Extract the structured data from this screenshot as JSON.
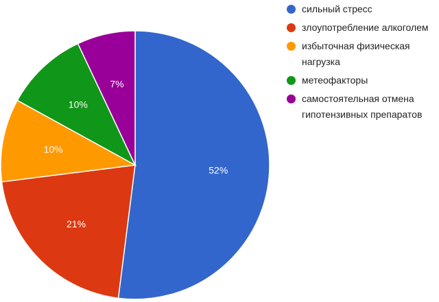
{
  "chart_data": {
    "type": "pie",
    "title": "",
    "legend_position": "right",
    "start_angle_deg": 0,
    "direction": "clockwise",
    "slices": [
      {
        "name": "сильный стресс",
        "value": 52,
        "label": "52%",
        "color": "#3366cc"
      },
      {
        "name": "злоупотребление алкоголем",
        "value": 21,
        "label": "21%",
        "color": "#dc3912"
      },
      {
        "name": "избыточная физическая нагрузка",
        "value": 10,
        "label": "10%",
        "color": "#ff9900"
      },
      {
        "name": "метеофакторы",
        "value": 10,
        "label": "10%",
        "color": "#109618"
      },
      {
        "name": "самостоятельная отмена гипотензивных препаратов",
        "value": 7,
        "label": "7%",
        "color": "#990099"
      }
    ],
    "legend": [
      {
        "lines": [
          "сильный стресс"
        ]
      },
      {
        "lines": [
          "злоупотребление алкоголем"
        ]
      },
      {
        "lines": [
          "избыточная физическая",
          "нагрузка"
        ]
      },
      {
        "lines": [
          "метеофакторы"
        ]
      },
      {
        "lines": [
          "самостоятельная отмена",
          "гипотензивных препаратов"
        ]
      }
    ]
  }
}
